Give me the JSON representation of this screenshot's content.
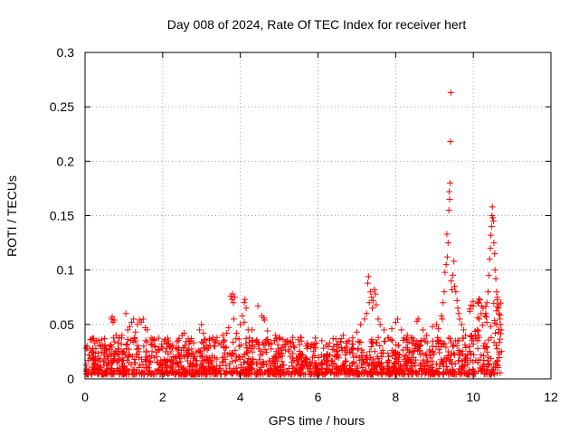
{
  "chart_data": {
    "type": "scatter",
    "title": "Day 008 of 2024, Rate Of TEC Index for receiver hert",
    "xlabel": "GPS time / hours",
    "ylabel": "ROTI / TECUs",
    "xlim": [
      0,
      12
    ],
    "ylim": [
      0,
      0.3
    ],
    "xticks": [
      "0",
      "2",
      "4",
      "6",
      "8",
      "10",
      "12"
    ],
    "yticks": [
      "0",
      "0.05",
      "0.1",
      "0.15",
      "0.2",
      "0.25",
      "0.3"
    ],
    "grid": true,
    "marker": "+",
    "color": "#ff0000",
    "series": [
      {
        "points": [
          [
            0.05,
            0.03
          ],
          [
            0.1,
            0.022
          ],
          [
            0.2,
            0.028
          ],
          [
            0.25,
            0.033
          ],
          [
            0.3,
            0.035
          ],
          [
            0.4,
            0.03
          ],
          [
            0.5,
            0.037
          ],
          [
            0.55,
            0.028
          ],
          [
            0.68,
            0.055
          ],
          [
            0.7,
            0.057
          ],
          [
            0.72,
            0.052
          ],
          [
            0.75,
            0.054
          ],
          [
            0.8,
            0.04
          ],
          [
            0.85,
            0.033
          ],
          [
            0.95,
            0.04
          ],
          [
            1.05,
            0.06
          ],
          [
            1.1,
            0.045
          ],
          [
            1.15,
            0.048
          ],
          [
            1.2,
            0.052
          ],
          [
            1.25,
            0.055
          ],
          [
            1.3,
            0.043
          ],
          [
            1.35,
            0.05
          ],
          [
            1.4,
            0.054
          ],
          [
            1.45,
            0.052
          ],
          [
            1.5,
            0.055
          ],
          [
            1.55,
            0.047
          ],
          [
            1.6,
            0.045
          ],
          [
            1.7,
            0.032
          ],
          [
            1.8,
            0.03
          ],
          [
            1.9,
            0.027
          ],
          [
            2.0,
            0.028
          ],
          [
            2.1,
            0.032
          ],
          [
            2.2,
            0.03
          ],
          [
            2.35,
            0.028
          ],
          [
            2.5,
            0.04
          ],
          [
            2.55,
            0.042
          ],
          [
            2.7,
            0.035
          ],
          [
            2.8,
            0.033
          ],
          [
            2.95,
            0.045
          ],
          [
            3.0,
            0.05
          ],
          [
            3.05,
            0.042
          ],
          [
            3.2,
            0.035
          ],
          [
            3.4,
            0.038
          ],
          [
            3.55,
            0.04
          ],
          [
            3.65,
            0.042
          ],
          [
            3.75,
            0.076
          ],
          [
            3.78,
            0.073
          ],
          [
            3.8,
            0.078
          ],
          [
            3.82,
            0.07
          ],
          [
            3.85,
            0.075
          ],
          [
            3.83,
            0.055
          ],
          [
            3.7,
            0.047
          ],
          [
            3.9,
            0.042
          ],
          [
            4.05,
            0.058
          ],
          [
            4.1,
            0.07
          ],
          [
            4.12,
            0.073
          ],
          [
            4.15,
            0.065
          ],
          [
            4.1,
            0.052
          ],
          [
            4.0,
            0.05
          ],
          [
            4.2,
            0.045
          ],
          [
            4.3,
            0.045
          ],
          [
            4.45,
            0.067
          ],
          [
            4.55,
            0.058
          ],
          [
            4.6,
            0.056
          ],
          [
            4.62,
            0.054
          ],
          [
            4.7,
            0.044
          ],
          [
            4.9,
            0.04
          ],
          [
            5.0,
            0.038
          ],
          [
            5.1,
            0.036
          ],
          [
            5.25,
            0.034
          ],
          [
            5.35,
            0.038
          ],
          [
            5.55,
            0.038
          ],
          [
            5.7,
            0.03
          ],
          [
            5.9,
            0.032
          ],
          [
            6.1,
            0.035
          ],
          [
            6.3,
            0.033
          ],
          [
            6.5,
            0.032
          ],
          [
            6.6,
            0.037
          ],
          [
            6.65,
            0.04
          ],
          [
            6.8,
            0.035
          ],
          [
            6.9,
            0.032
          ],
          [
            7.0,
            0.043
          ],
          [
            7.1,
            0.05
          ],
          [
            7.2,
            0.055
          ],
          [
            7.25,
            0.06
          ],
          [
            7.28,
            0.088
          ],
          [
            7.3,
            0.094
          ],
          [
            7.32,
            0.07
          ],
          [
            7.35,
            0.08
          ],
          [
            7.38,
            0.075
          ],
          [
            7.4,
            0.065
          ],
          [
            7.42,
            0.072
          ],
          [
            7.45,
            0.082
          ],
          [
            7.48,
            0.078
          ],
          [
            7.5,
            0.068
          ],
          [
            7.55,
            0.055
          ],
          [
            7.6,
            0.05
          ],
          [
            7.7,
            0.045
          ],
          [
            7.9,
            0.046
          ],
          [
            8.0,
            0.052
          ],
          [
            8.05,
            0.055
          ],
          [
            8.15,
            0.045
          ],
          [
            8.3,
            0.04
          ],
          [
            8.4,
            0.038
          ],
          [
            8.55,
            0.053
          ],
          [
            8.58,
            0.055
          ],
          [
            8.7,
            0.045
          ],
          [
            8.8,
            0.04
          ],
          [
            8.95,
            0.048
          ],
          [
            9.05,
            0.05
          ],
          [
            9.1,
            0.046
          ],
          [
            9.18,
            0.058
          ],
          [
            9.2,
            0.055
          ],
          [
            9.22,
            0.07
          ],
          [
            9.25,
            0.08
          ],
          [
            9.27,
            0.098
          ],
          [
            9.3,
            0.105
          ],
          [
            9.32,
            0.133
          ],
          [
            9.33,
            0.112
          ],
          [
            9.35,
            0.125
          ],
          [
            9.37,
            0.155
          ],
          [
            9.38,
            0.172
          ],
          [
            9.39,
            0.165
          ],
          [
            9.4,
            0.18
          ],
          [
            9.41,
            0.218
          ],
          [
            9.42,
            0.263
          ],
          [
            9.43,
            0.09
          ],
          [
            9.45,
            0.082
          ],
          [
            9.47,
            0.095
          ],
          [
            9.5,
            0.108
          ],
          [
            9.52,
            0.085
          ],
          [
            9.55,
            0.08
          ],
          [
            9.58,
            0.072
          ],
          [
            9.6,
            0.065
          ],
          [
            9.62,
            0.06
          ],
          [
            9.65,
            0.055
          ],
          [
            9.7,
            0.05
          ],
          [
            9.75,
            0.045
          ],
          [
            9.8,
            0.04
          ],
          [
            9.9,
            0.03
          ],
          [
            10.0,
            0.032
          ],
          [
            10.05,
            0.04
          ],
          [
            10.1,
            0.045
          ],
          [
            10.15,
            0.055
          ],
          [
            10.2,
            0.06
          ],
          [
            10.25,
            0.065
          ],
          [
            10.3,
            0.058
          ],
          [
            10.35,
            0.07
          ],
          [
            10.38,
            0.08
          ],
          [
            10.4,
            0.095
          ],
          [
            10.42,
            0.11
          ],
          [
            10.44,
            0.12
          ],
          [
            10.45,
            0.132
          ],
          [
            10.47,
            0.14
          ],
          [
            10.48,
            0.15
          ],
          [
            10.49,
            0.158
          ],
          [
            10.5,
            0.148
          ],
          [
            10.52,
            0.145
          ],
          [
            10.53,
            0.125
          ],
          [
            10.55,
            0.115
          ],
          [
            10.56,
            0.1
          ],
          [
            10.58,
            0.092
          ],
          [
            10.6,
            0.08
          ],
          [
            10.62,
            0.075
          ],
          [
            10.65,
            0.065
          ],
          [
            10.68,
            0.055
          ],
          [
            10.7,
            0.05
          ],
          [
            10.72,
            0.045
          ]
        ]
      }
    ]
  }
}
